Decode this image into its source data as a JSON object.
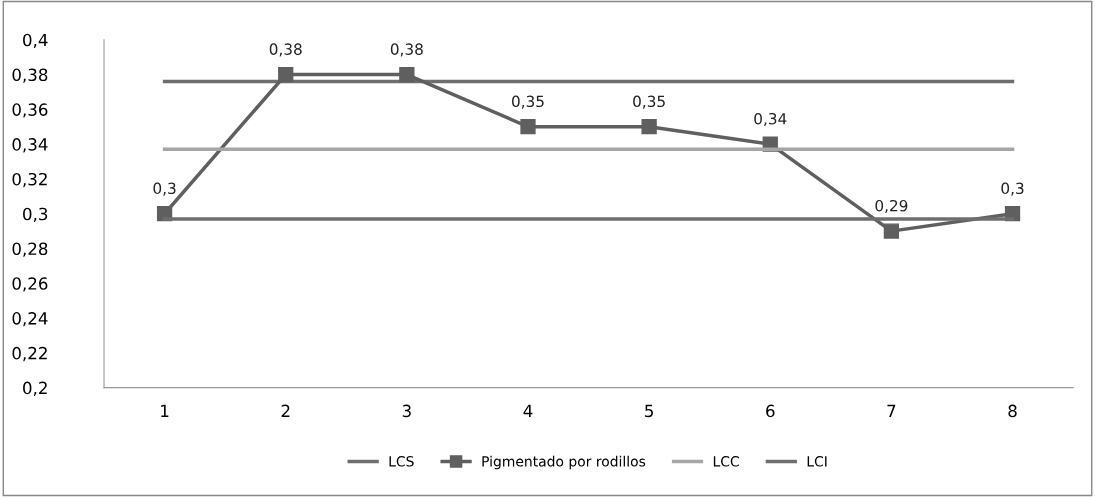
{
  "chart_data": {
    "type": "line",
    "categories": [
      "1",
      "2",
      "3",
      "4",
      "5",
      "6",
      "7",
      "8"
    ],
    "series": [
      {
        "name": "LCS",
        "color": "#6e6e6e",
        "values": [
          0.376,
          0.376,
          0.376,
          0.376,
          0.376,
          0.376,
          0.376,
          0.376
        ],
        "marker": "none"
      },
      {
        "name": "Pigmentado por rodillos",
        "color": "#5f5f5f",
        "values": [
          0.3,
          0.38,
          0.38,
          0.35,
          0.35,
          0.34,
          0.29,
          0.3
        ],
        "marker": "square",
        "value_labels": [
          "0,3",
          "0,38",
          "0,38",
          "0,35",
          "0,35",
          "0,34",
          "0,29",
          "0,3"
        ]
      },
      {
        "name": "LCC",
        "color": "#a6a6a6",
        "values": [
          0.337,
          0.337,
          0.337,
          0.337,
          0.337,
          0.337,
          0.337,
          0.337
        ],
        "marker": "none"
      },
      {
        "name": "LCI",
        "color": "#6e6e6e",
        "values": [
          0.297,
          0.297,
          0.297,
          0.297,
          0.297,
          0.297,
          0.297,
          0.297
        ],
        "marker": "none"
      }
    ],
    "ylim": [
      0.2,
      0.4
    ],
    "yticks": [
      {
        "value": 0.2,
        "label": "0,2"
      },
      {
        "value": 0.22,
        "label": "0,22"
      },
      {
        "value": 0.24,
        "label": "0,24"
      },
      {
        "value": 0.26,
        "label": "0,26"
      },
      {
        "value": 0.28,
        "label": "0,28"
      },
      {
        "value": 0.3,
        "label": "0,3"
      },
      {
        "value": 0.32,
        "label": "0,32"
      },
      {
        "value": 0.34,
        "label": "0,34"
      },
      {
        "value": 0.36,
        "label": "0,36"
      },
      {
        "value": 0.38,
        "label": "0,38"
      },
      {
        "value": 0.4,
        "label": "0,4"
      }
    ],
    "grid": false,
    "legend": "bottom"
  }
}
